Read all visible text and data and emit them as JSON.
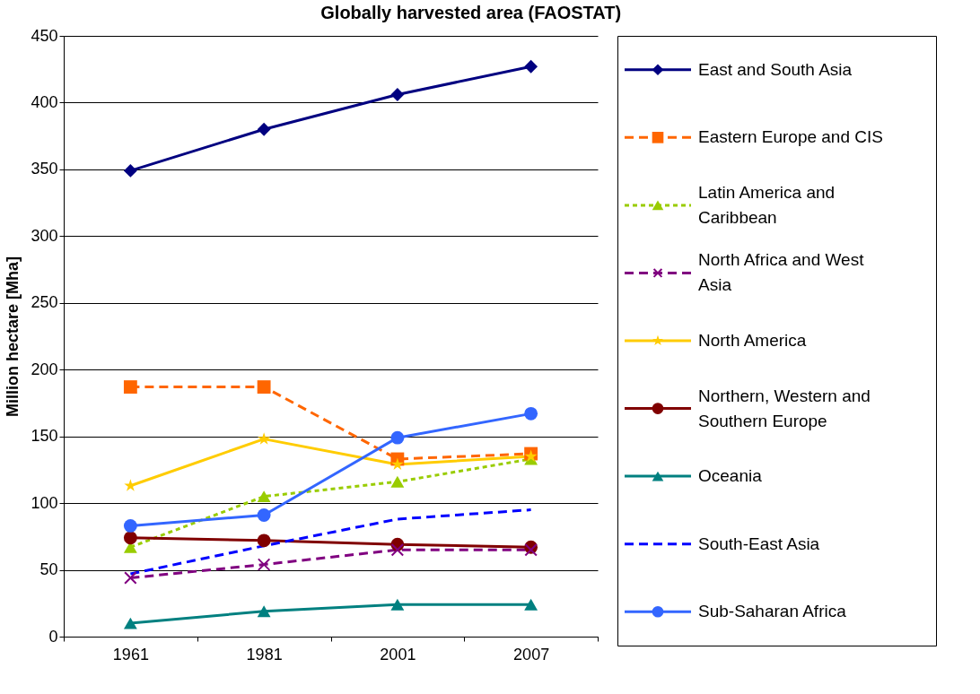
{
  "chart_data": {
    "type": "line",
    "title": "Globally harvested area (FAOSTAT)",
    "ylabel": "Million hectare [Mha]",
    "categories": [
      "1961",
      "1981",
      "2001",
      "2007"
    ],
    "series": [
      {
        "name": "East and South Asia",
        "color": "#000080",
        "marker": "diamond",
        "line_style": "solid",
        "values": [
          349,
          380,
          406,
          427
        ]
      },
      {
        "name": "Eastern Europe and CIS",
        "color": "#ff6600",
        "marker": "square",
        "line_style": "dashed",
        "values": [
          187,
          187,
          133,
          137
        ]
      },
      {
        "name": "Latin America and Caribbean",
        "color": "#99cc00",
        "marker": "triangle",
        "line_style": "dotted",
        "values": [
          67,
          105,
          116,
          133
        ]
      },
      {
        "name": "North Africa and West Asia",
        "color": "#800080",
        "marker": "cross",
        "line_style": "dashed",
        "values": [
          44,
          54,
          65,
          65
        ]
      },
      {
        "name": "North America",
        "color": "#ffcc00",
        "marker": "star",
        "line_style": "solid",
        "values": [
          113,
          148,
          129,
          135
        ]
      },
      {
        "name": "Northern, Western and Southern Europe",
        "color": "#800000",
        "marker": "circle",
        "line_style": "solid",
        "values": [
          74,
          72,
          69,
          67
        ]
      },
      {
        "name": "Oceania",
        "color": "#008080",
        "marker": "triangle",
        "line_style": "solid",
        "values": [
          10,
          19,
          24,
          24
        ]
      },
      {
        "name": "South-East Asia",
        "color": "#0000ff",
        "marker": "none",
        "line_style": "dashed",
        "values": [
          47,
          68,
          88,
          95
        ]
      },
      {
        "name": "Sub-Saharan Africa",
        "color": "#3366ff",
        "marker": "circle",
        "line_style": "solid",
        "values": [
          83,
          91,
          149,
          167
        ]
      }
    ],
    "ylim": [
      0,
      450
    ],
    "yticks": [
      0,
      50,
      100,
      150,
      200,
      250,
      300,
      350,
      400,
      450
    ],
    "grid": "y",
    "legend": "right"
  }
}
